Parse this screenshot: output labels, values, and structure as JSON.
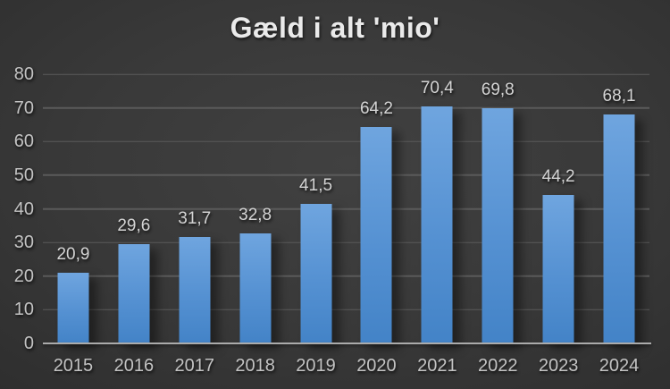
{
  "chart_data": {
    "type": "bar",
    "title": "Gæld i alt 'mio'",
    "categories": [
      "2015",
      "2016",
      "2017",
      "2018",
      "2019",
      "2020",
      "2021",
      "2022",
      "2023",
      "2024"
    ],
    "values": [
      20.9,
      29.6,
      31.7,
      32.8,
      41.5,
      64.2,
      70.4,
      69.8,
      44.2,
      68.1
    ],
    "value_labels": [
      "20,9",
      "29,6",
      "31,7",
      "32,8",
      "41,5",
      "64,2",
      "70,4",
      "69,8",
      "44,2",
      "68,1"
    ],
    "xlabel": "",
    "ylabel": "",
    "ylim": [
      0,
      80
    ],
    "yticks": [
      0,
      10,
      20,
      30,
      40,
      50,
      60,
      70,
      80
    ],
    "grid": true,
    "legend": "none",
    "colors": {
      "bar_top": "#6fa5df",
      "bar_bottom": "#4383c7",
      "background_center": "#414141",
      "background_edge": "#262626",
      "gridline": "#5a5a5a",
      "axis_line": "#ababab",
      "tick_label": "#c3c3c3",
      "title": "#eaeaea"
    }
  }
}
